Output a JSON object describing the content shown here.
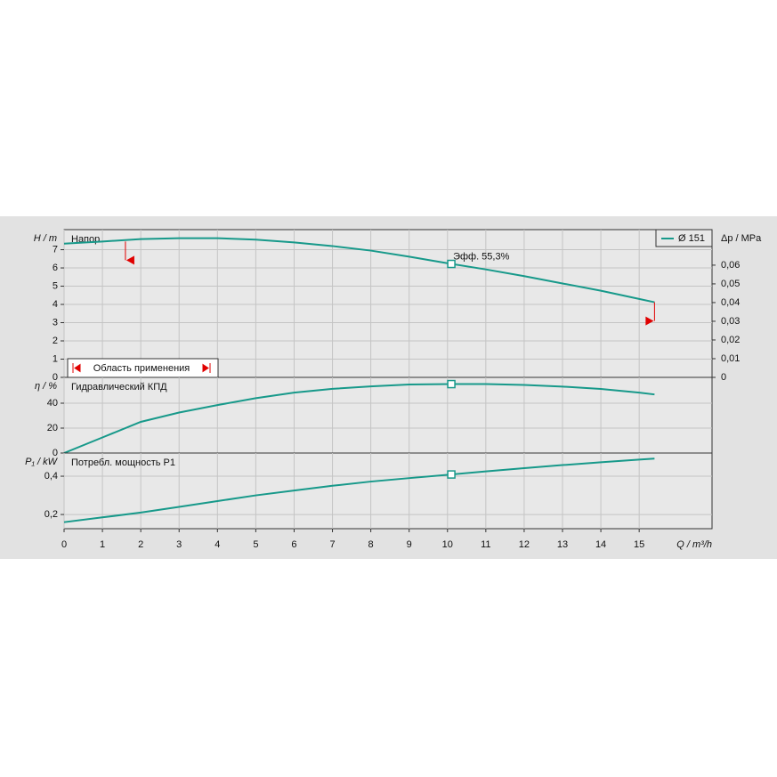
{
  "chart_data": [
    {
      "type": "line",
      "title": "Напор",
      "ylabel": "H / m",
      "y2label": "Δp / MPa",
      "x": [
        0,
        1,
        2,
        3,
        4,
        5,
        6,
        7,
        8,
        9,
        10.1,
        11,
        12,
        13,
        14,
        15,
        15.4
      ],
      "series": [
        {
          "name": "Ø 151",
          "color": "#17998a",
          "values": [
            7.33,
            7.45,
            7.58,
            7.63,
            7.63,
            7.55,
            7.4,
            7.2,
            6.95,
            6.62,
            6.22,
            5.92,
            5.55,
            5.15,
            4.75,
            4.3,
            4.12
          ]
        }
      ],
      "duty_point": {
        "x": 10.1,
        "y": 6.22
      },
      "annotation": "Эфф.  55,3%",
      "application_range": {
        "label": "Область применения",
        "x": [
          1.6,
          15.4
        ],
        "color": "#e00000"
      },
      "xlim": [
        0,
        16.9
      ],
      "ylim": [
        0,
        8.1
      ],
      "yticks": [
        0,
        1,
        2,
        3,
        4,
        5,
        6,
        7
      ],
      "y2lim": [
        0,
        0.079
      ],
      "y2ticks": [
        0,
        {
          "value": 0.01,
          "label": "0,01"
        },
        {
          "value": 0.02,
          "label": "0,02"
        },
        {
          "value": 0.03,
          "label": "0,03"
        },
        {
          "value": 0.04,
          "label": "0,04"
        },
        {
          "value": 0.05,
          "label": "0,05"
        },
        {
          "value": 0.06,
          "label": "0,06"
        }
      ],
      "grid": true,
      "legend": "upper right"
    },
    {
      "type": "line",
      "title": "Гидравлический КПД",
      "ylabel": "η / %",
      "x": [
        0,
        1,
        2,
        3,
        4,
        5,
        6,
        7,
        8,
        9,
        10.1,
        11,
        12,
        13,
        14,
        15,
        15.4
      ],
      "series": [
        {
          "name": "Ø 151",
          "color": "#17998a",
          "values": [
            0,
            12.5,
            25,
            32.5,
            38.5,
            44,
            48.5,
            51.5,
            53.5,
            55,
            55.3,
            55.3,
            54.6,
            53.3,
            51.4,
            48.5,
            47
          ]
        }
      ],
      "duty_point": {
        "x": 10.1,
        "y": 55.3
      },
      "xlim": [
        0,
        16.9
      ],
      "ylim": [
        0,
        60.7
      ],
      "yticks": [
        0,
        20,
        40
      ],
      "grid": true
    },
    {
      "type": "line",
      "title": "Потребл. мощность P1",
      "ylabel": "P₁ / kW",
      "xlabel": "Q / m³/h",
      "x": [
        0,
        1,
        2,
        3,
        4,
        5,
        6,
        7,
        8,
        9,
        10.1,
        11,
        12,
        13,
        14,
        15,
        15.4
      ],
      "series": [
        {
          "name": "Ø 151",
          "color": "#17998a",
          "values": [
            0.16,
            0.185,
            0.21,
            0.24,
            0.27,
            0.3,
            0.325,
            0.35,
            0.372,
            0.39,
            0.409,
            0.425,
            0.442,
            0.458,
            0.473,
            0.487,
            0.492
          ]
        }
      ],
      "duty_point": {
        "x": 10.1,
        "y": 0.409
      },
      "xlim": [
        0,
        16.9
      ],
      "ylim": [
        0.126,
        0.521
      ],
      "yticks": [
        {
          "value": 0.2,
          "label": "0,2"
        },
        {
          "value": 0.4,
          "label": "0,4"
        }
      ],
      "xticks": [
        0,
        1,
        2,
        3,
        4,
        5,
        6,
        7,
        8,
        9,
        10,
        11,
        12,
        13,
        14,
        15
      ],
      "grid": true
    }
  ]
}
